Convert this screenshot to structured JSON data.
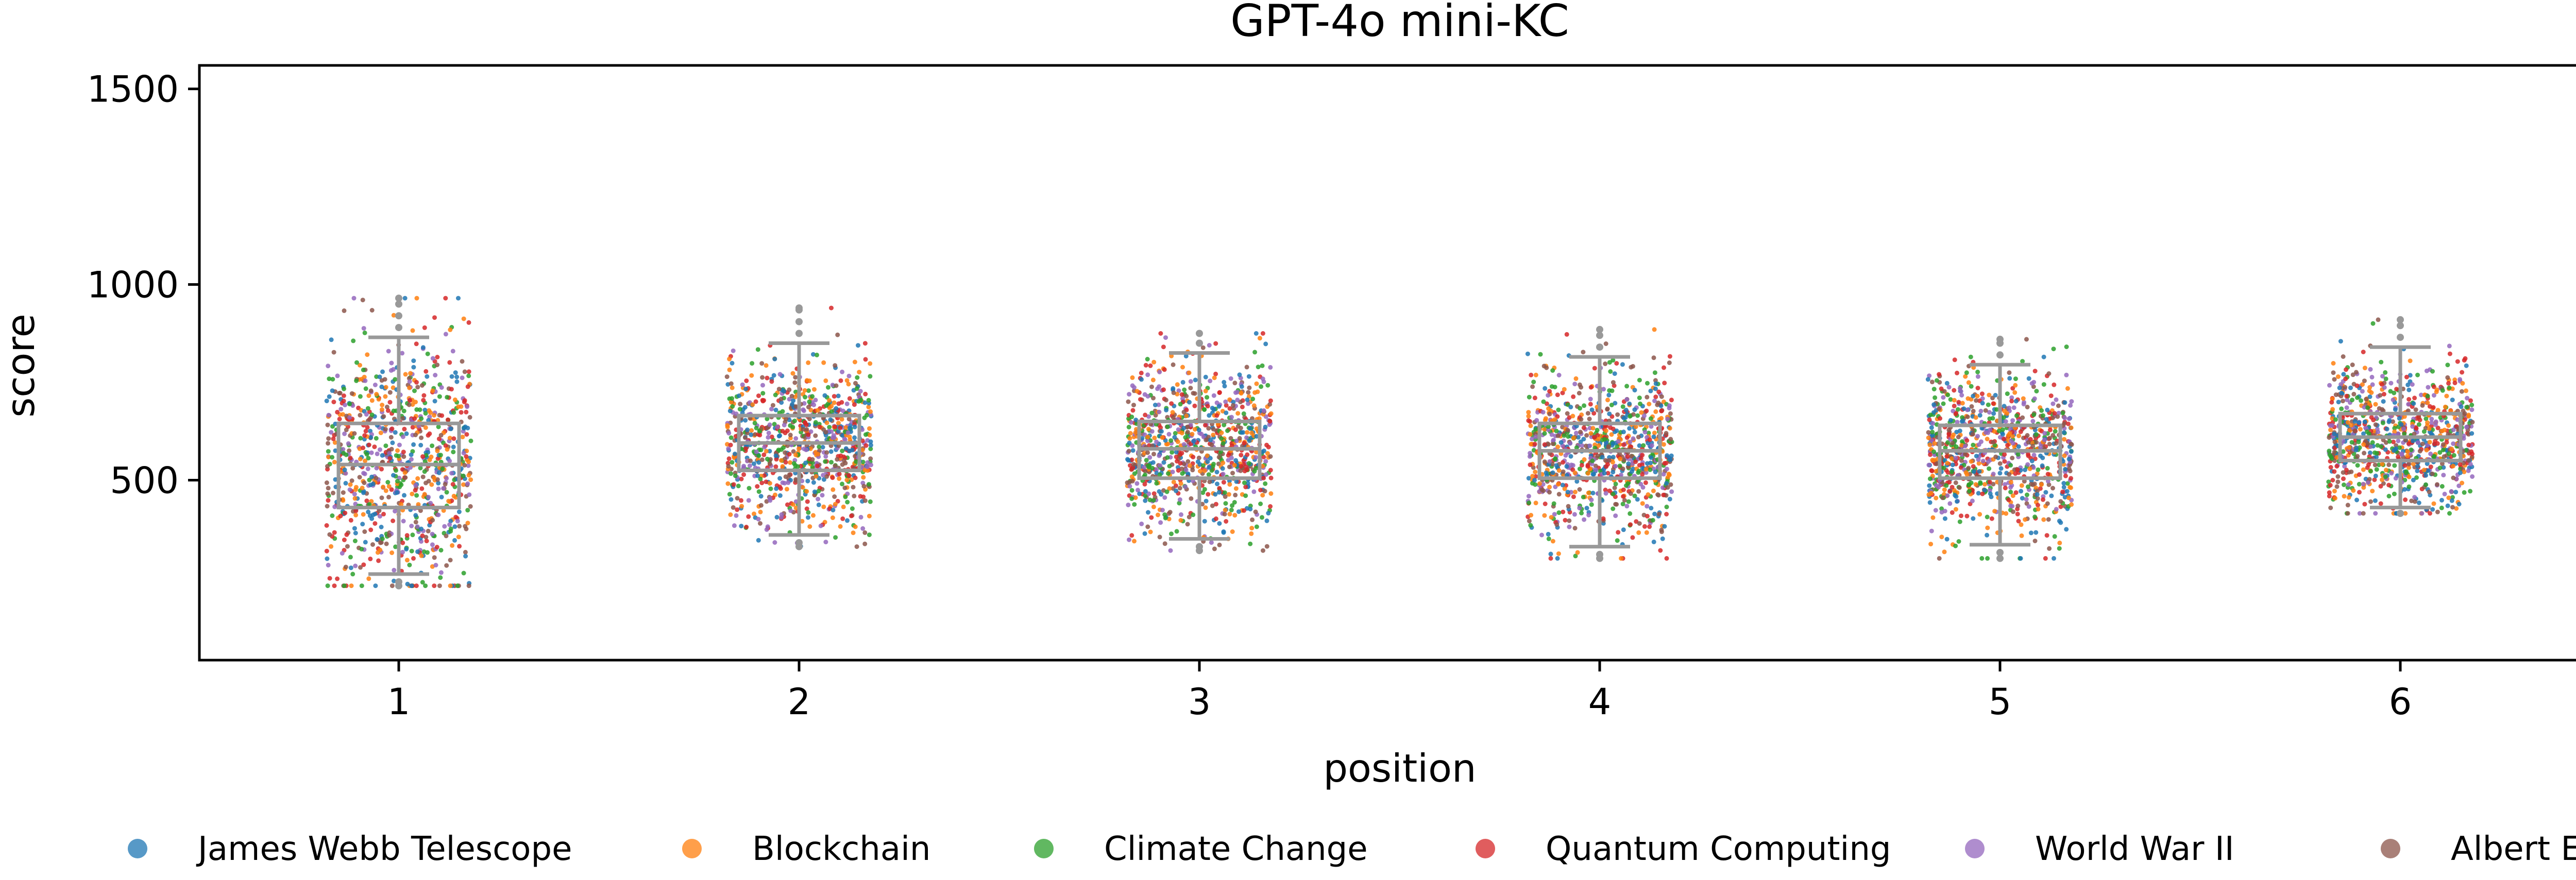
{
  "chart_data": {
    "type": "scatter",
    "title": "GPT-4o mini-KC",
    "xlabel": "position",
    "ylabel": "score",
    "categories": [
      "1",
      "2",
      "3",
      "4",
      "5",
      "6"
    ],
    "yticks": [
      "500",
      "1000",
      "1500"
    ],
    "ylim": [
      40,
      1560
    ],
    "grid": false,
    "legend_position": "bottom",
    "legend": [
      {
        "name": "James Webb Telescope",
        "color": "#1f77b4"
      },
      {
        "name": "Blockchain",
        "color": "#ff7f0e"
      },
      {
        "name": "Climate Change",
        "color": "#2ca02c"
      },
      {
        "name": "Quantum Computing",
        "color": "#d62728"
      },
      {
        "name": "World War II",
        "color": "#9467bd"
      },
      {
        "name": "Albert Einstein",
        "color": "#8c564b"
      }
    ],
    "box_color": "#999999",
    "boxes": [
      {
        "position": "1",
        "whisker_low": 260,
        "q1": 430,
        "median": 540,
        "q3": 645,
        "whisker_high": 865,
        "min": 230,
        "max": 965
      },
      {
        "position": "2",
        "whisker_low": 360,
        "q1": 525,
        "median": 595,
        "q3": 665,
        "whisker_high": 850,
        "min": 330,
        "max": 940
      },
      {
        "position": "3",
        "whisker_low": 350,
        "q1": 505,
        "median": 580,
        "q3": 650,
        "whisker_high": 825,
        "min": 320,
        "max": 875
      },
      {
        "position": "4",
        "whisker_low": 330,
        "q1": 505,
        "median": 575,
        "q3": 645,
        "whisker_high": 815,
        "min": 300,
        "max": 885
      },
      {
        "position": "5",
        "whisker_low": 335,
        "q1": 505,
        "median": 575,
        "q3": 640,
        "whisker_high": 795,
        "min": 300,
        "max": 860
      },
      {
        "position": "6",
        "whisker_low": 430,
        "q1": 550,
        "median": 610,
        "q3": 670,
        "whisker_high": 840,
        "min": 415,
        "max": 910
      }
    ]
  }
}
